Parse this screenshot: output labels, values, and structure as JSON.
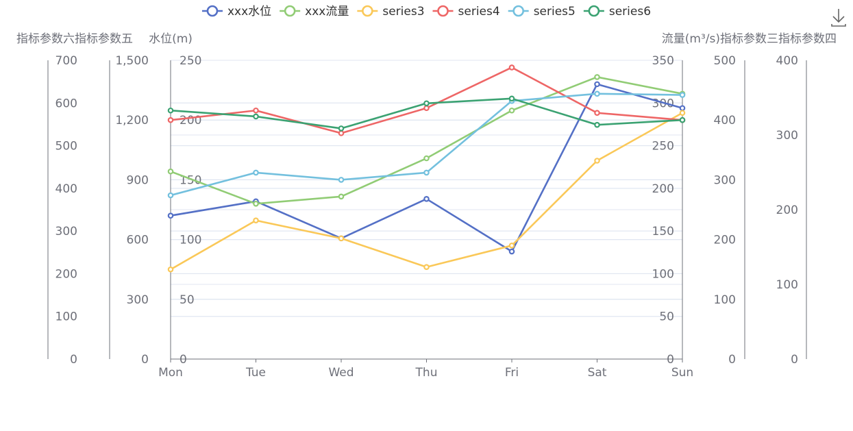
{
  "chart_data": {
    "type": "line",
    "categories": [
      "Mon",
      "Tue",
      "Wed",
      "Thu",
      "Fri",
      "Sat",
      "Sun"
    ],
    "legend_position": "top-center",
    "grid": true,
    "colors": {
      "xxx水位": "#5470c6",
      "xxx流量": "#91cc75",
      "series3": "#fac858",
      "series4": "#ee6666",
      "series5": "#73c0de",
      "series6": "#3ba272",
      "axis": "#6E7079",
      "gridline": "#E0E6F1"
    },
    "y_axes": [
      {
        "id": "y1",
        "name": "水位(m)",
        "side": "left",
        "min": 0,
        "max": 250,
        "ticks": [
          0,
          50,
          100,
          150,
          200,
          250
        ],
        "tick_labels": [
          "0",
          "50",
          "100",
          "150",
          "200",
          "250"
        ]
      },
      {
        "id": "y5",
        "name": "指标参数五",
        "side": "left",
        "min": 0,
        "max": 1500,
        "ticks": [
          0,
          300,
          600,
          900,
          1200,
          1500
        ],
        "tick_labels": [
          "0",
          "300",
          "600",
          "900",
          "1,200",
          "1,500"
        ]
      },
      {
        "id": "y6",
        "name": "指标参数六",
        "side": "left",
        "min": 0,
        "max": 700,
        "ticks": [
          0,
          100,
          200,
          300,
          400,
          500,
          600,
          700
        ],
        "tick_labels": [
          "0",
          "100",
          "200",
          "300",
          "400",
          "500",
          "600",
          "700"
        ]
      },
      {
        "id": "y2",
        "name": "流量(m³/s)",
        "side": "right",
        "min": 0,
        "max": 350,
        "ticks": [
          0,
          50,
          100,
          150,
          200,
          250,
          300,
          350
        ],
        "tick_labels": [
          "0",
          "50",
          "100",
          "150",
          "200",
          "250",
          "300",
          "350"
        ]
      },
      {
        "id": "y3",
        "name": "指标参数三",
        "side": "right",
        "min": 0,
        "max": 500,
        "ticks": [
          0,
          100,
          200,
          300,
          400,
          500
        ],
        "tick_labels": [
          "0",
          "100",
          "200",
          "300",
          "400",
          "500"
        ]
      },
      {
        "id": "y4",
        "name": "指标参数四",
        "side": "right",
        "min": 0,
        "max": 400,
        "ticks": [
          0,
          100,
          200,
          300,
          400
        ],
        "tick_labels": [
          "0",
          "100",
          "200",
          "300",
          "400"
        ]
      }
    ],
    "series": [
      {
        "name": "xxx水位",
        "axis": "y1",
        "values": [
          120,
          132,
          101,
          134,
          90,
          230,
          210
        ]
      },
      {
        "name": "xxx流量",
        "axis": "y1",
        "values": [
          157,
          130,
          136,
          168,
          208,
          236,
          222
        ]
      },
      {
        "name": "series3",
        "axis": "y1",
        "values": [
          75,
          116,
          101,
          77,
          95,
          166,
          206
        ]
      },
      {
        "name": "series4",
        "axis": "y1",
        "values": [
          200,
          208,
          189,
          210,
          244,
          206,
          200
        ]
      },
      {
        "name": "series5",
        "axis": "y1",
        "values": [
          137,
          156,
          150,
          156,
          216,
          222,
          221
        ]
      },
      {
        "name": "series6",
        "axis": "y1",
        "values": [
          208,
          203,
          193,
          214,
          218,
          196,
          200
        ]
      }
    ]
  }
}
